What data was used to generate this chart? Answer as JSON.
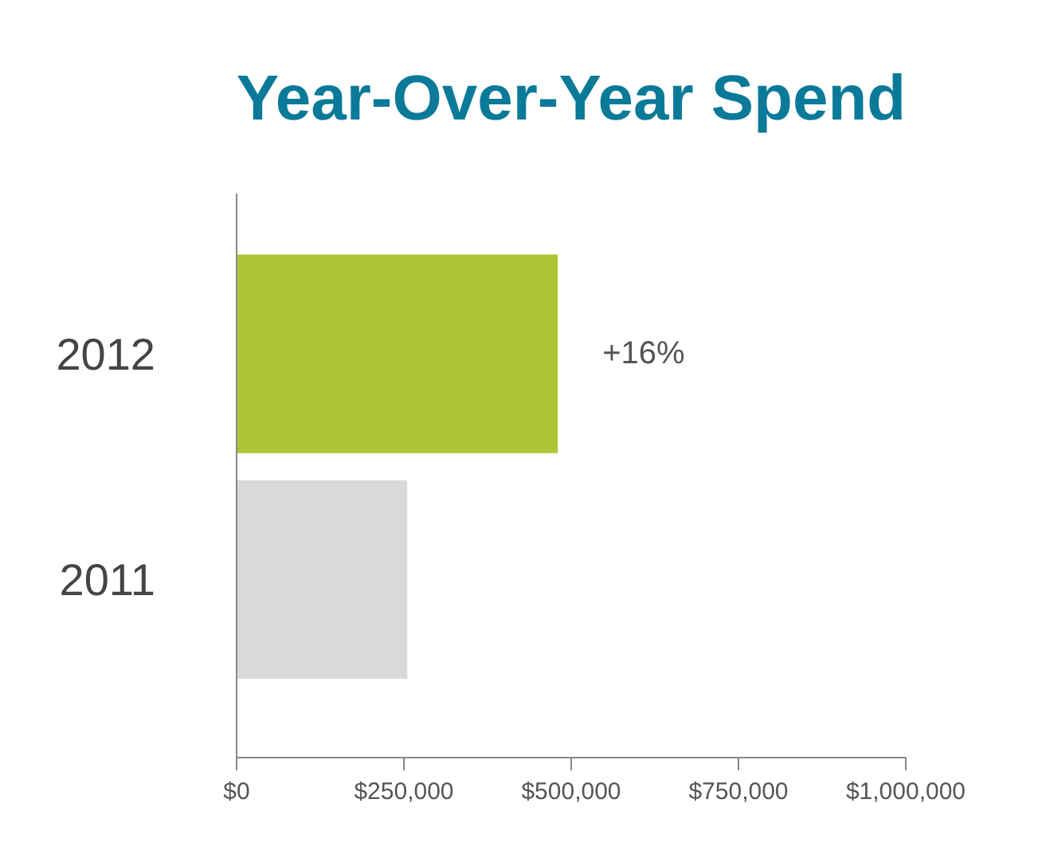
{
  "chart_data": {
    "type": "bar",
    "orientation": "horizontal",
    "title": "Year-Over-Year Spend",
    "categories": [
      "2012",
      "2011"
    ],
    "values": [
      480000,
      255000
    ],
    "colors": [
      "#b0c535",
      "#d9d9d9"
    ],
    "xlim": [
      0,
      1000000
    ],
    "xticks": [
      {
        "value": 0,
        "label": "$0"
      },
      {
        "value": 250000,
        "label": "$250,000"
      },
      {
        "value": 500000,
        "label": "$500,000"
      },
      {
        "value": 750000,
        "label": "$750,000"
      },
      {
        "value": 1000000,
        "label": "$1,000,000"
      }
    ],
    "annotations": [
      {
        "text": "+16%",
        "x": 480000,
        "y": "2012"
      }
    ],
    "grid": false
  }
}
